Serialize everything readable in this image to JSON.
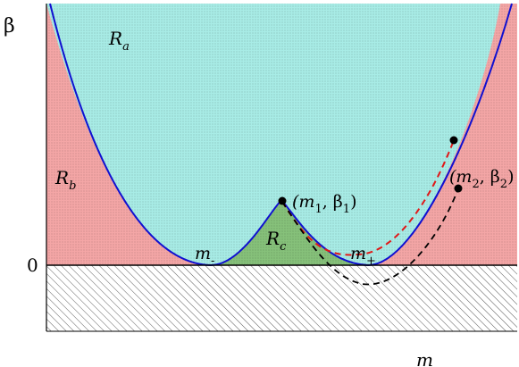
{
  "axes": {
    "y_label": "β",
    "x_label": "m",
    "zero_label": "0"
  },
  "regions": {
    "Ra": {
      "main": "R",
      "sub": "a",
      "color": "#a8ece6"
    },
    "Rb": {
      "main": "R",
      "sub": "b",
      "color": "#f4a6a6"
    },
    "Rc": {
      "main": "R",
      "sub": "c",
      "color": "#86c17a"
    }
  },
  "markers": {
    "m_minus": {
      "main": "m",
      "sub": "-"
    },
    "m_plus": {
      "main": "m",
      "sub": "+"
    }
  },
  "points": {
    "p1": {
      "open": "(m",
      "sub1": "1",
      "mid": ", β",
      "sub2": "1",
      "close": ")"
    },
    "p2": {
      "open": "(m",
      "sub1": "2",
      "mid": ", β",
      "sub2": "2",
      "close": ")"
    }
  },
  "colors": {
    "boundary": "#1010d0",
    "path_red": "#e01818",
    "path_black": "#000000",
    "hatch": "#333333"
  }
}
